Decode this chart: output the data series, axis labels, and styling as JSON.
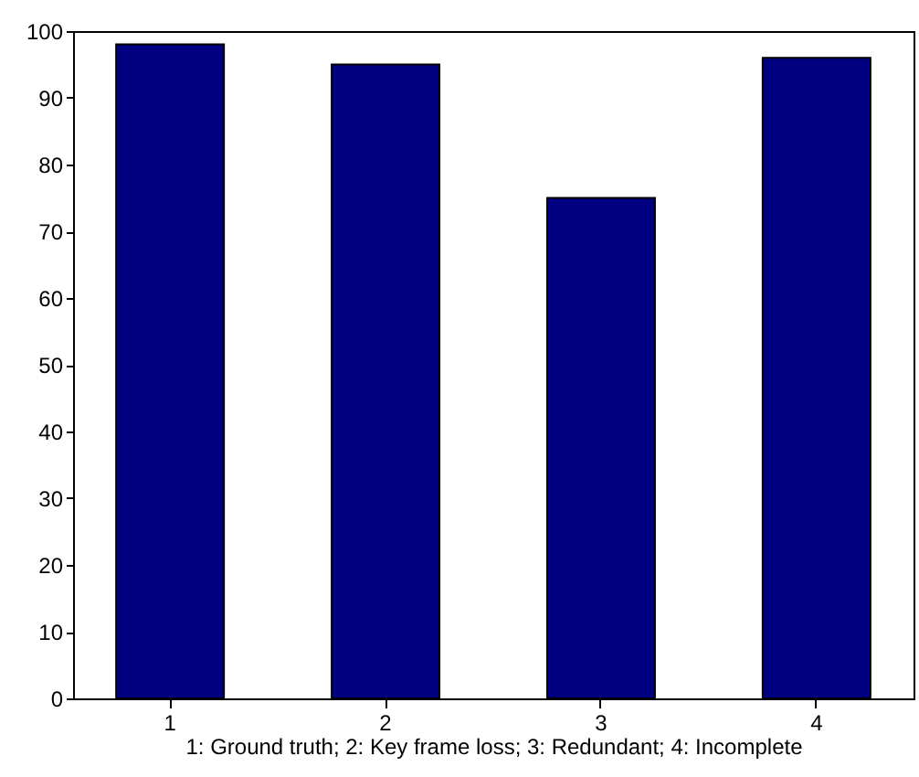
{
  "chart_data": {
    "type": "bar",
    "categories": [
      "1",
      "2",
      "3",
      "4"
    ],
    "values": [
      98,
      95,
      75,
      96
    ],
    "color": "#000080",
    "xlabel": "1: Ground truth; 2: Key frame loss; 3: Redundant; 4: Incomplete",
    "ylim": [
      0,
      100
    ],
    "yticks": [
      0,
      10,
      20,
      30,
      40,
      50,
      60,
      70,
      80,
      90,
      100
    ],
    "grid": false
  }
}
